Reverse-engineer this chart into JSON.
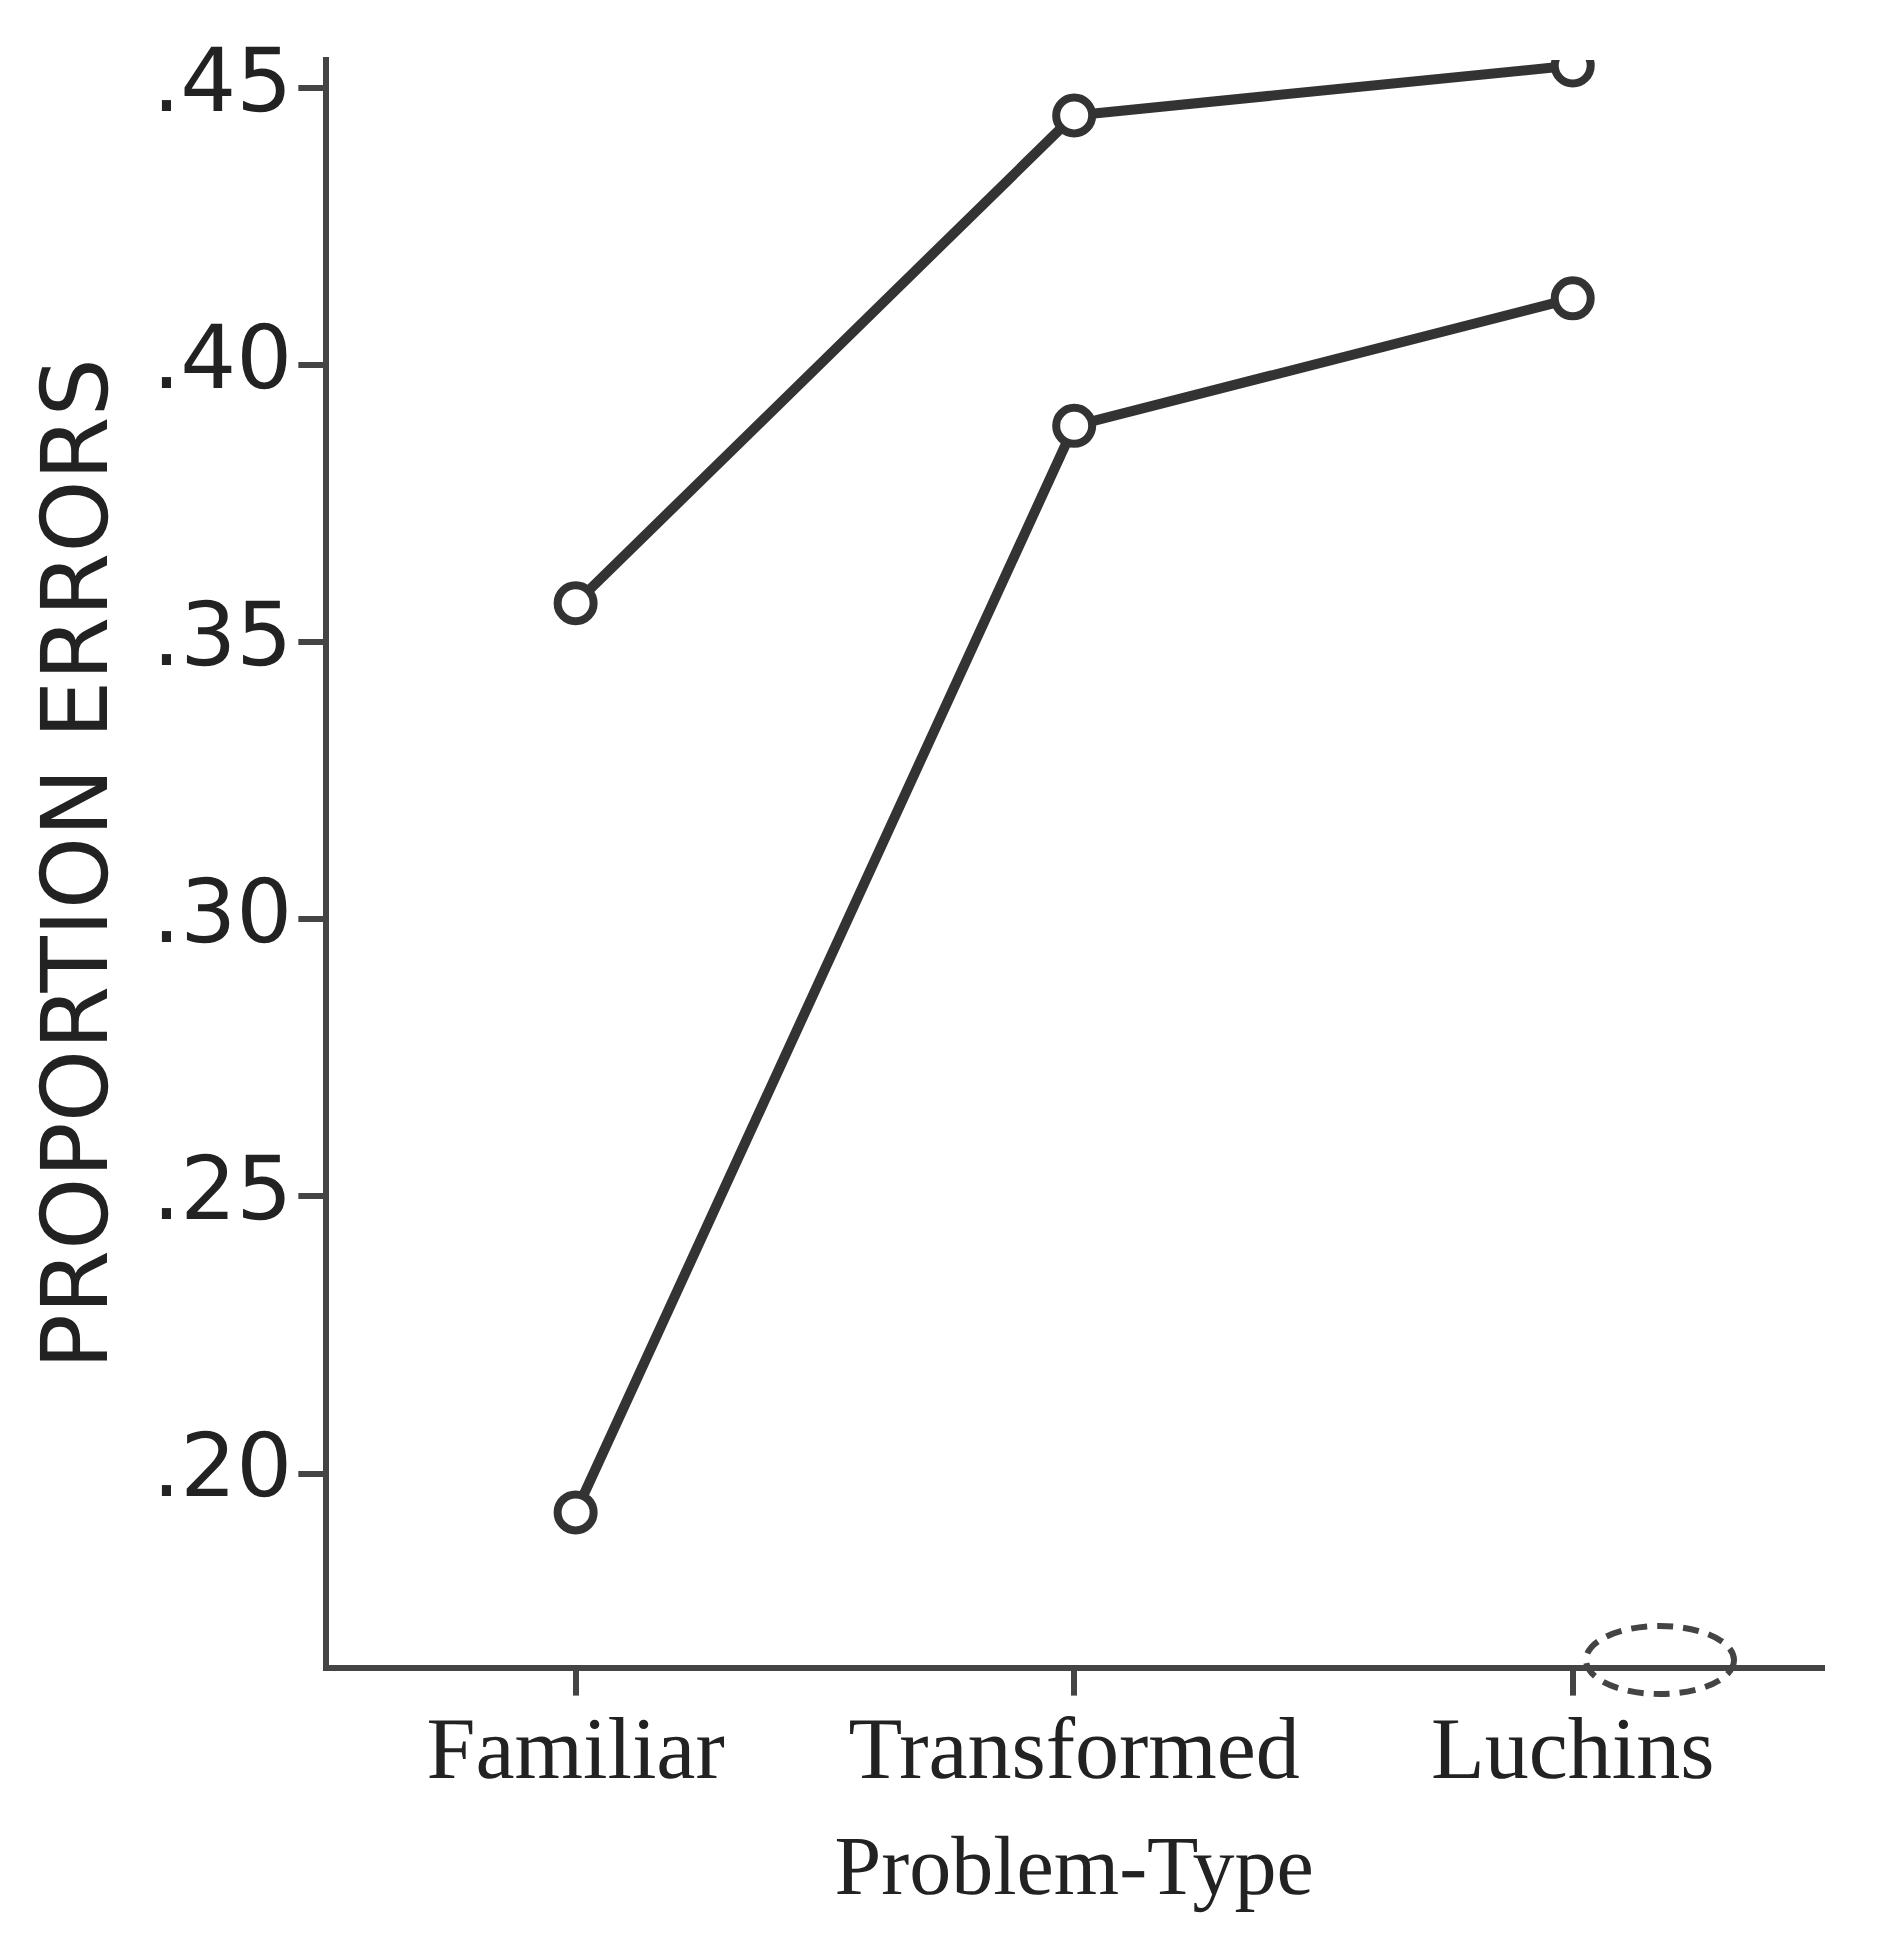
{
  "chart_data": {
    "type": "line",
    "xlabel": "Problem-Type",
    "ylabel": "PROPORTION ERRORS",
    "categories": [
      "Familiar",
      "Transformed",
      "Luchins"
    ],
    "series": [
      {
        "color": "#333333",
        "values": [
          0.357,
          0.445,
          0.454
        ]
      },
      {
        "color": "#333333",
        "values": [
          0.193,
          0.389,
          0.412
        ]
      }
    ],
    "ylim": [
      0.165,
      0.455
    ],
    "yticks": [
      {
        "value": 0.2,
        "label": ".20"
      },
      {
        "value": 0.25,
        "label": ".25"
      },
      {
        "value": 0.3,
        "label": ".30"
      },
      {
        "value": 0.35,
        "label": ".35"
      },
      {
        "value": 0.4,
        "label": ".40"
      },
      {
        "value": 0.45,
        "label": ".45"
      }
    ],
    "grid": false,
    "legend": false,
    "marker": "circle",
    "line_style": "solid"
  }
}
